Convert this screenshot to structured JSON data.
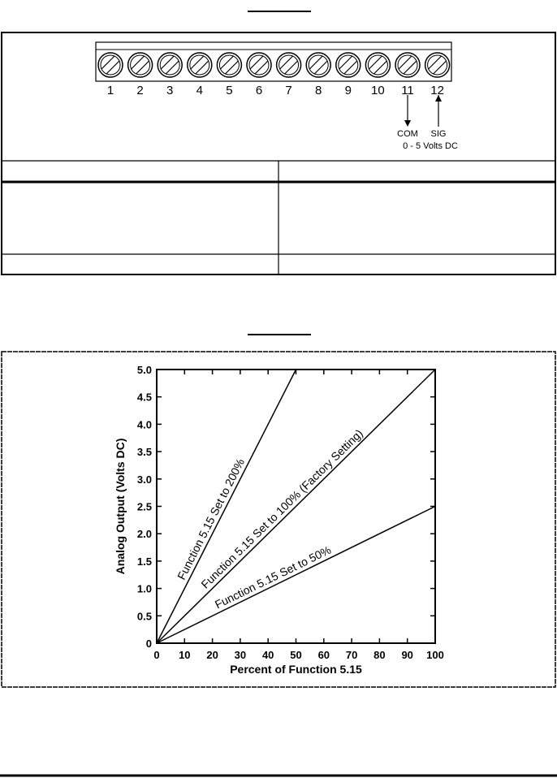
{
  "terminal_block": {
    "terminals": [
      "1",
      "2",
      "3",
      "4",
      "5",
      "6",
      "7",
      "8",
      "9",
      "10",
      "11",
      "12"
    ],
    "labels": [
      "COM",
      "SIG"
    ],
    "note": "0 - 5 Volts DC"
  },
  "chart_data": {
    "type": "line",
    "x_label": "Percent of Function 5.15",
    "y_label": "Analog Output (Volts DC)",
    "xlim": [
      0,
      100
    ],
    "ylim": [
      0,
      5
    ],
    "xticks": [
      0,
      10,
      20,
      30,
      40,
      50,
      60,
      70,
      80,
      90,
      100
    ],
    "yticks": [
      0,
      0.5,
      {
        "value": 1,
        "label": "1.0"
      },
      1.5,
      {
        "value": 2,
        "label": "2.0"
      },
      2.5,
      {
        "value": 3,
        "label": "3.0"
      },
      3.5,
      {
        "value": 4,
        "label": "4.0"
      },
      4.5,
      {
        "value": 5,
        "label": "5.0"
      }
    ],
    "series": [
      {
        "name": "Function 5.15 Set to 200%",
        "color": "#000000",
        "x": [
          0,
          50
        ],
        "values": [
          0,
          5
        ]
      },
      {
        "name": "Function 5.15 Set to 100% (Factory Setting)",
        "color": "#000000",
        "x": [
          0,
          100
        ],
        "values": [
          0,
          5
        ]
      },
      {
        "name": "Function 5.15 Set to 50%",
        "color": "#000000",
        "x": [
          0,
          100
        ],
        "values": [
          0,
          2.5
        ]
      }
    ]
  }
}
